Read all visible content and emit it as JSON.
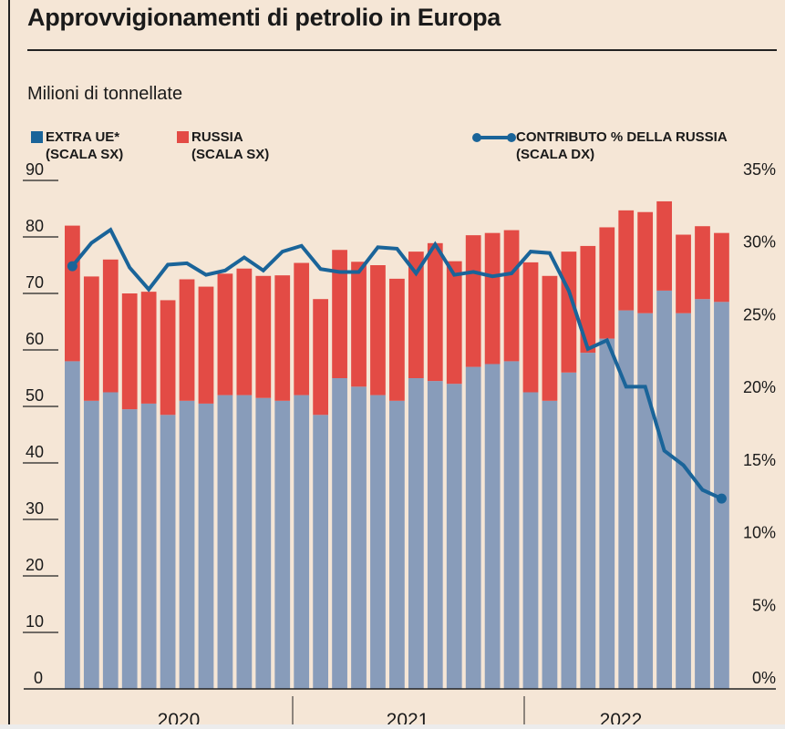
{
  "title": "Approvvigionamenti di petrolio in Europa",
  "subtitle": "Milioni di tonnellate",
  "legend": {
    "extra_ue": {
      "line1": "EXTRA UE*",
      "line2": "(SCALA SX)"
    },
    "russia": {
      "line1": "RUSSIA",
      "line2": "(SCALA SX)"
    },
    "contributo": {
      "line1": "CONTRIBUTO % DELLA RUSSIA",
      "line2": "(SCALA DX)"
    }
  },
  "colors": {
    "extra_ue": "#889cba",
    "russia": "#e34b45",
    "line": "#1a6499"
  },
  "chart_data": {
    "type": "bar",
    "stacked": true,
    "title": "Approvvigionamenti di petrolio in Europa",
    "ylabel": "Milioni di tonnellate",
    "ylim": [
      0,
      90
    ],
    "y2lim": [
      0,
      35
    ],
    "yticks": [
      "0",
      "10",
      "20",
      "30",
      "40",
      "50",
      "60",
      "70",
      "80",
      "90"
    ],
    "y2ticks": [
      "0%",
      "5%",
      "10%",
      "15%",
      "20%",
      "25%",
      "30%",
      "35%"
    ],
    "years": [
      "2020",
      "2021",
      "2022"
    ],
    "months": 35,
    "series": [
      {
        "name": "Extra UE*",
        "values": [
          58,
          51,
          52.5,
          49.5,
          50.5,
          48.5,
          51,
          50.5,
          52,
          52,
          51.5,
          51,
          52,
          48.5,
          55,
          53.5,
          52,
          51,
          55,
          54.5,
          54,
          57,
          57.5,
          58,
          52.5,
          51,
          56,
          59.5,
          62,
          67,
          66.5,
          70.5,
          66.5,
          69,
          68.5
        ]
      },
      {
        "name": "Russia",
        "values": [
          24,
          22,
          23.5,
          20.5,
          19.8,
          20.3,
          21.5,
          20.7,
          21.5,
          22.4,
          21.6,
          22.2,
          23.4,
          20.5,
          22.7,
          22.1,
          23,
          21.6,
          22.4,
          24.4,
          21.7,
          23.3,
          23.2,
          23.2,
          23,
          22.1,
          21.4,
          18.9,
          19.7,
          17.7,
          17.9,
          15.8,
          13.9,
          12.9,
          12.2
        ]
      },
      {
        "name": "Contributo % della Russia",
        "axis": "right",
        "type": "line",
        "values": [
          29.1,
          30.7,
          31.6,
          29,
          27.5,
          29.2,
          29.3,
          28.5,
          28.8,
          29.7,
          28.8,
          30.1,
          30.5,
          28.9,
          28.7,
          28.7,
          30.4,
          30.3,
          28.6,
          30.6,
          28.5,
          28.7,
          28.4,
          28.6,
          30.1,
          30,
          27.4,
          23.4,
          24,
          20.8,
          20.8,
          16.4,
          15.4,
          13.7,
          13.1
        ]
      }
    ]
  }
}
